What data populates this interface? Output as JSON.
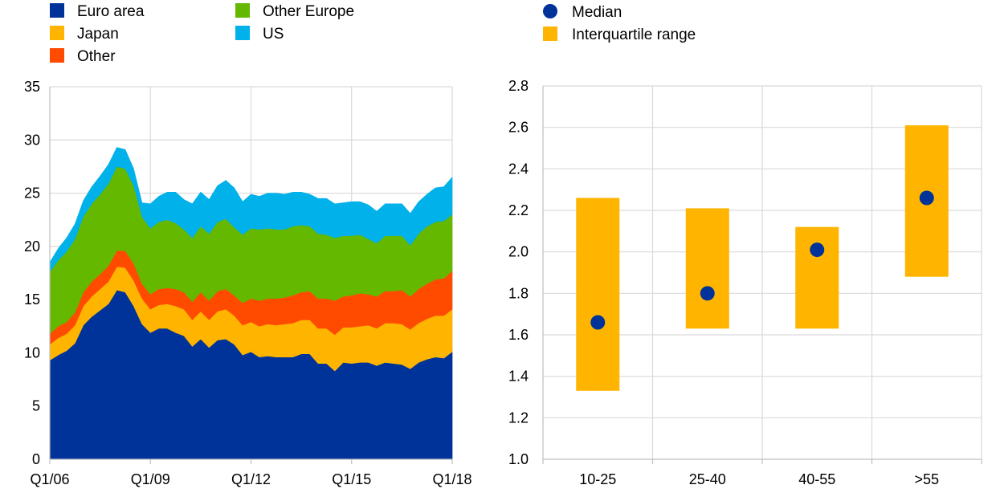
{
  "chart_data": [
    {
      "type": "area",
      "stacked": true,
      "title": "",
      "xlabel": "",
      "ylabel": "",
      "ylim": [
        0,
        35
      ],
      "yticks": [
        0,
        5,
        10,
        15,
        20,
        25,
        30,
        35
      ],
      "x_tick_labels": [
        "Q1/06",
        "Q1/09",
        "Q1/12",
        "Q1/15",
        "Q1/18"
      ],
      "x_tick_index": [
        0,
        12,
        24,
        36,
        48
      ],
      "grid": true,
      "legend_position": "top",
      "series": [
        {
          "name": "Euro area",
          "color": "#003399",
          "values": [
            9.3,
            9.8,
            10.2,
            10.9,
            12.6,
            13.4,
            14.0,
            14.6,
            15.9,
            15.7,
            14.4,
            12.7,
            11.9,
            12.3,
            12.3,
            11.9,
            11.6,
            10.6,
            11.3,
            10.5,
            11.2,
            11.3,
            10.8,
            9.8,
            10.1,
            9.6,
            9.7,
            9.6,
            9.6,
            9.6,
            9.9,
            9.9,
            9.0,
            9.0,
            8.3,
            9.1,
            9.0,
            9.1,
            9.1,
            8.8,
            9.1,
            9.0,
            8.9,
            8.5,
            9.1,
            9.4,
            9.6,
            9.5,
            10.1
          ]
        },
        {
          "name": "Japan",
          "color": "#FFB400",
          "values": [
            1.5,
            1.6,
            1.6,
            1.7,
            1.8,
            1.9,
            2.0,
            2.1,
            2.2,
            2.3,
            2.4,
            2.4,
            2.2,
            2.2,
            2.3,
            2.5,
            2.5,
            2.5,
            2.6,
            2.6,
            2.7,
            2.8,
            2.7,
            2.8,
            2.8,
            2.9,
            3.0,
            3.0,
            3.1,
            3.2,
            3.2,
            3.2,
            3.3,
            3.3,
            3.4,
            3.3,
            3.4,
            3.4,
            3.5,
            3.5,
            3.7,
            3.8,
            3.8,
            3.7,
            3.7,
            3.8,
            3.9,
            4.0,
            4.0
          ]
        },
        {
          "name": "Other",
          "color": "#FF4B00",
          "values": [
            1.0,
            1.1,
            1.1,
            1.2,
            1.3,
            1.4,
            1.4,
            1.5,
            1.5,
            1.6,
            1.6,
            1.4,
            1.4,
            1.5,
            1.5,
            1.6,
            1.6,
            1.7,
            1.8,
            1.8,
            1.9,
            1.9,
            1.9,
            2.1,
            2.2,
            2.4,
            2.4,
            2.5,
            2.5,
            2.6,
            2.6,
            2.7,
            2.8,
            2.8,
            3.2,
            2.9,
            3.0,
            3.1,
            2.9,
            3.0,
            3.0,
            3.0,
            3.2,
            3.1,
            3.2,
            3.3,
            3.4,
            3.5,
            3.6
          ]
        },
        {
          "name": "Other Europe",
          "color": "#65B800",
          "values": [
            5.8,
            6.2,
            6.6,
            6.9,
            7.1,
            7.3,
            7.5,
            7.7,
            7.9,
            7.7,
            7.3,
            6.3,
            6.2,
            6.3,
            6.4,
            6.2,
            5.9,
            6.0,
            6.2,
            6.3,
            6.5,
            6.6,
            6.4,
            6.4,
            6.6,
            6.7,
            6.6,
            6.5,
            6.4,
            6.5,
            6.3,
            6.1,
            6.1,
            6.0,
            5.9,
            5.7,
            5.6,
            5.5,
            5.2,
            5.0,
            5.2,
            5.2,
            5.1,
            4.8,
            5.2,
            5.4,
            5.4,
            5.4,
            5.3
          ]
        },
        {
          "name": "US",
          "color": "#00B1EA",
          "values": [
            0.9,
            1.1,
            1.3,
            1.4,
            1.5,
            1.6,
            1.7,
            1.8,
            1.8,
            1.8,
            1.6,
            1.3,
            2.3,
            2.4,
            2.6,
            2.9,
            2.8,
            3.2,
            3.2,
            3.2,
            3.4,
            3.6,
            3.7,
            3.1,
            3.2,
            3.1,
            3.3,
            3.4,
            3.3,
            3.2,
            3.1,
            3.0,
            3.3,
            3.4,
            3.2,
            3.1,
            3.2,
            3.1,
            3.2,
            3.0,
            3.0,
            3.0,
            3.0,
            3.0,
            3.0,
            3.0,
            3.2,
            3.2,
            3.5
          ]
        }
      ]
    },
    {
      "type": "range",
      "title": "",
      "xlabel": "",
      "ylabel": "",
      "ylim": [
        1.0,
        2.8
      ],
      "yticks": [
        "1.0",
        "1.2",
        "1.4",
        "1.6",
        "1.8",
        "2.0",
        "2.2",
        "2.4",
        "2.6",
        "2.8"
      ],
      "grid": true,
      "legend_position": "top",
      "categories": [
        "10-25",
        "25-40",
        "40-55",
        ">55"
      ],
      "series": [
        {
          "name": "Median",
          "color": "#003399",
          "marker": "circle",
          "values": [
            1.66,
            1.8,
            2.01,
            2.26
          ]
        },
        {
          "name": "Interquartile range",
          "color": "#FFB400",
          "low": [
            1.33,
            1.63,
            1.63,
            1.88
          ],
          "high": [
            2.26,
            2.21,
            2.12,
            2.61
          ]
        }
      ]
    }
  ]
}
